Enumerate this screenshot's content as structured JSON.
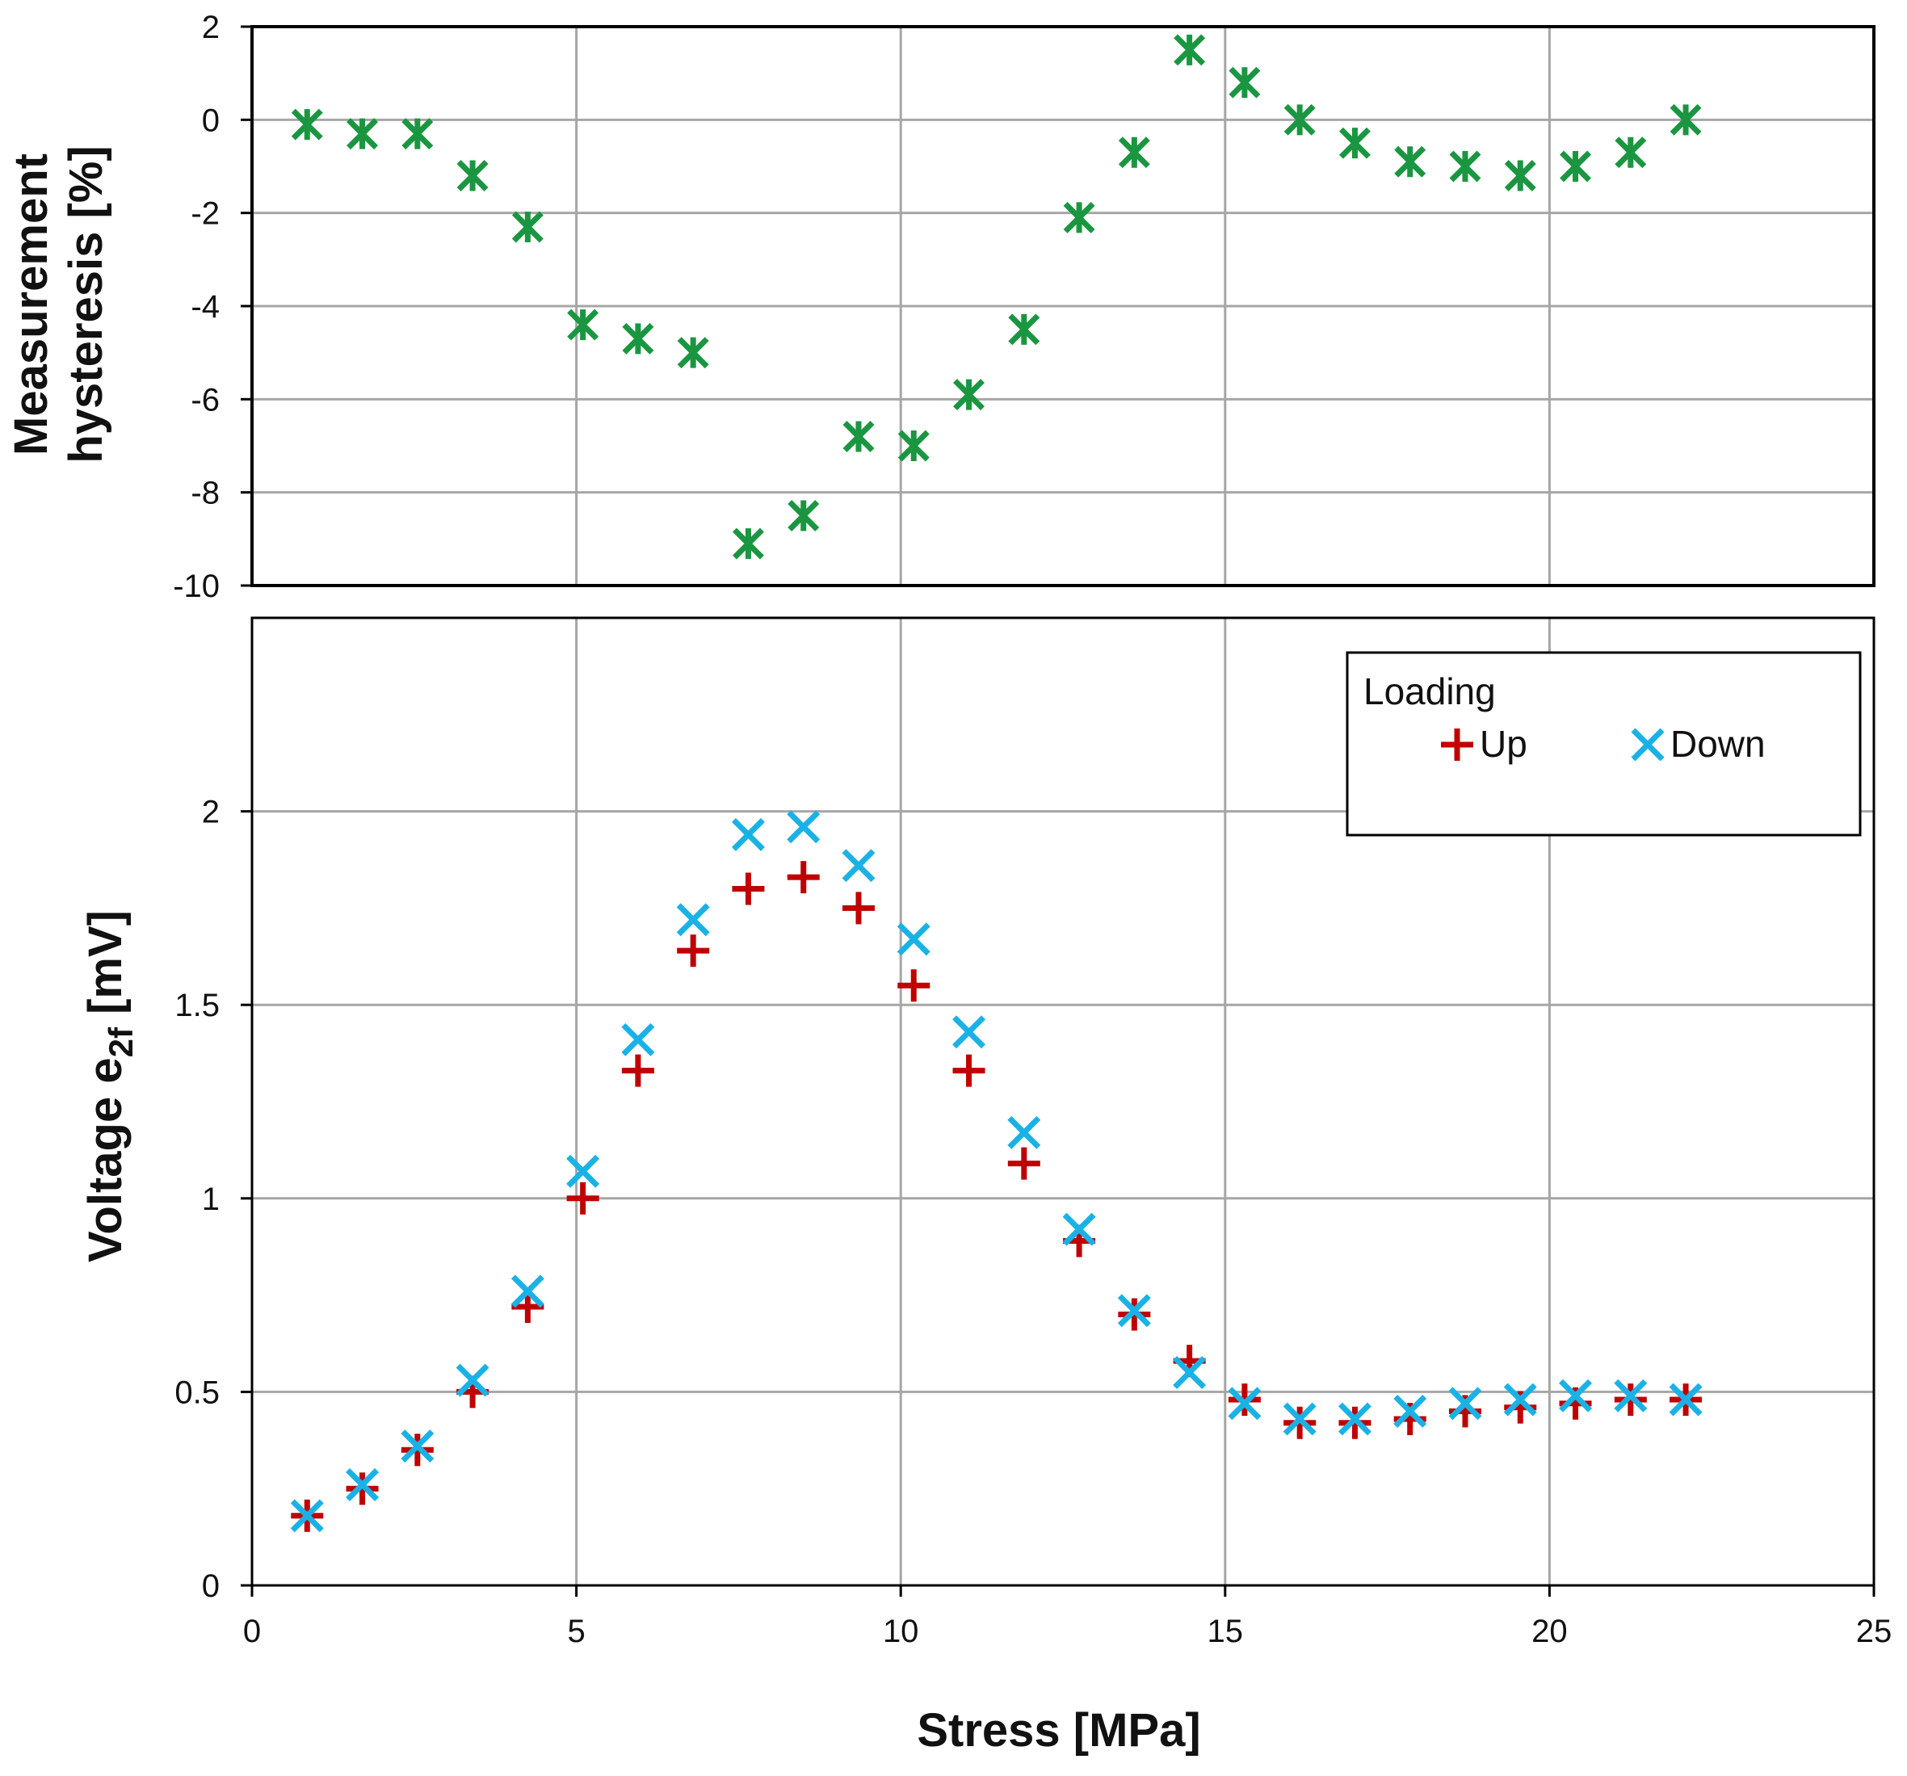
{
  "chart_data": [
    {
      "id": "hysteresis",
      "type": "scatter",
      "title": "",
      "xlabel": "",
      "ylabel_lines": [
        "Measurement",
        "hysteresis [%]"
      ],
      "xlim": [
        0,
        25
      ],
      "ylim": [
        -10,
        2
      ],
      "xticks": [
        0,
        5,
        10,
        15,
        20,
        25
      ],
      "yticks": [
        -10,
        -8,
        -6,
        -4,
        -2,
        0,
        2
      ],
      "x_tick_labels_shown": false,
      "grid": true,
      "series": [
        {
          "name": "Measurement hysteresis",
          "marker": "asterisk",
          "color": "#1a9641",
          "x": [
            0.85,
            1.7,
            2.55,
            3.4,
            4.25,
            5.1,
            5.95,
            6.8,
            7.65,
            8.5,
            9.35,
            10.2,
            11.05,
            11.9,
            12.75,
            13.6,
            14.45,
            15.3,
            16.15,
            17.0,
            17.85,
            18.7,
            19.55,
            20.4,
            21.25,
            22.1
          ],
          "y": [
            -0.1,
            -0.3,
            -0.3,
            -1.2,
            -2.3,
            -4.4,
            -4.7,
            -5.0,
            -9.1,
            -8.5,
            -6.8,
            -7.0,
            -5.9,
            -4.5,
            -2.1,
            -0.7,
            1.5,
            0.8,
            0.0,
            -0.5,
            -0.9,
            -1.0,
            -1.2,
            -1.0,
            -0.7,
            0.0
          ]
        }
      ]
    },
    {
      "id": "voltage",
      "type": "scatter",
      "title": "",
      "xlabel": "Stress [MPa]",
      "ylabel": "Voltage e",
      "ylabel_subscript": "2f",
      "ylabel_suffix": " [mV]",
      "xlim": [
        0,
        25
      ],
      "ylim": [
        0,
        2.5
      ],
      "xticks": [
        0,
        5,
        10,
        15,
        20,
        25
      ],
      "yticks": [
        0,
        0.5,
        1,
        1.5,
        2
      ],
      "grid": true,
      "legend": {
        "title": "Loading",
        "placement": "top-right"
      },
      "series": [
        {
          "name": "Up",
          "marker": "plus",
          "color": "#c00000",
          "x": [
            0.85,
            1.7,
            2.55,
            3.4,
            4.25,
            5.1,
            5.95,
            6.8,
            7.65,
            8.5,
            9.35,
            10.2,
            11.05,
            11.9,
            12.75,
            13.6,
            14.45,
            15.3,
            16.15,
            17.0,
            17.85,
            18.7,
            19.55,
            20.4,
            21.25,
            22.1
          ],
          "y": [
            0.18,
            0.25,
            0.35,
            0.5,
            0.72,
            1.0,
            1.33,
            1.64,
            1.8,
            1.83,
            1.75,
            1.55,
            1.33,
            1.09,
            0.89,
            0.7,
            0.58,
            0.48,
            0.42,
            0.42,
            0.43,
            0.45,
            0.46,
            0.47,
            0.48,
            0.48
          ]
        },
        {
          "name": "Down",
          "marker": "cross",
          "color": "#1ab2e6",
          "x": [
            0.85,
            1.7,
            2.55,
            3.4,
            4.25,
            5.1,
            5.95,
            6.8,
            7.65,
            8.5,
            9.35,
            10.2,
            11.05,
            11.9,
            12.75,
            13.6,
            14.45,
            15.3,
            16.15,
            17.0,
            17.85,
            18.7,
            19.55,
            20.4,
            21.25,
            22.1
          ],
          "y": [
            0.18,
            0.26,
            0.36,
            0.53,
            0.76,
            1.07,
            1.41,
            1.72,
            1.94,
            1.96,
            1.86,
            1.67,
            1.43,
            1.17,
            0.92,
            0.71,
            0.55,
            0.47,
            0.43,
            0.43,
            0.45,
            0.47,
            0.48,
            0.49,
            0.49,
            0.48
          ]
        }
      ]
    }
  ]
}
